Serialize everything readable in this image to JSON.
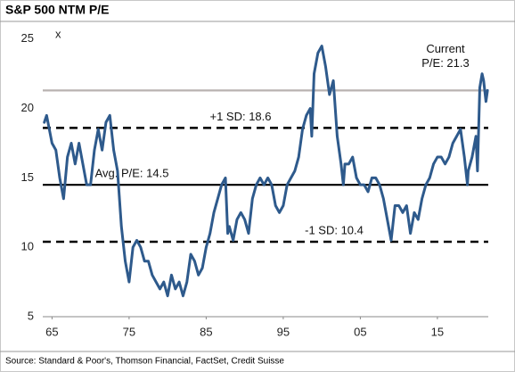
{
  "chart_data": {
    "type": "line",
    "title": "S&P 500 NTM P/E",
    "y_unit_label": "x",
    "source": "Source: Standard & Poor's, Thomson Financial, FactSet, Credit Suisse",
    "xlim": [
      1963.8,
      2021.6
    ],
    "ylim": [
      5,
      25.5
    ],
    "xticks": [
      {
        "value": 1965,
        "label": "65"
      },
      {
        "value": 1975,
        "label": "75"
      },
      {
        "value": 1985,
        "label": "85"
      },
      {
        "value": 1995,
        "label": "95"
      },
      {
        "value": 2005,
        "label": "05"
      },
      {
        "value": 2015,
        "label": "15"
      }
    ],
    "yticks": [
      5,
      10,
      15,
      20,
      25
    ],
    "reference_lines": [
      {
        "value": 21.3,
        "label": [
          "Current",
          "P/E: 21.3"
        ],
        "style": "solid",
        "color": "#b8b2b0"
      },
      {
        "value": 18.6,
        "label": [
          "+1 SD: 18.6"
        ],
        "style": "dashed",
        "color": "#000000"
      },
      {
        "value": 14.5,
        "label": [
          "Avg. P/E: 14.5"
        ],
        "style": "solid",
        "color": "#000000"
      },
      {
        "value": 10.4,
        "label": [
          "-1 SD: 10.4"
        ],
        "style": "dashed",
        "color": "#000000"
      }
    ],
    "series": [
      {
        "color": "#2e5a8c",
        "x": [
          1964,
          1964.3,
          1965,
          1965.5,
          1966,
          1966.5,
          1967,
          1967.5,
          1968,
          1968.5,
          1969,
          1969.5,
          1970,
          1970.5,
          1971,
          1971.5,
          1972,
          1972.5,
          1973,
          1973.5,
          1974,
          1974.5,
          1975,
          1975.5,
          1976,
          1976.5,
          1977,
          1977.5,
          1978,
          1978.5,
          1979,
          1979.5,
          1980,
          1980.5,
          1981,
          1981.5,
          1982,
          1982.5,
          1983,
          1983.5,
          1984,
          1984.5,
          1985,
          1985.5,
          1986,
          1986.5,
          1987,
          1987.5,
          1987.8,
          1988,
          1988.5,
          1989,
          1989.5,
          1990,
          1990.5,
          1991,
          1991.5,
          1992,
          1992.5,
          1993,
          1993.5,
          1994,
          1994.5,
          1995,
          1995.5,
          1996,
          1996.5,
          1997,
          1997.5,
          1998,
          1998.5,
          1998.7,
          1999,
          1999.5,
          2000,
          2000.5,
          2001,
          2001.5,
          2002,
          2002.5,
          2002.8,
          2003,
          2003.5,
          2004,
          2004.5,
          2005,
          2005.5,
          2006,
          2006.5,
          2007,
          2007.5,
          2008,
          2008.5,
          2009,
          2009.5,
          2010,
          2010.5,
          2011,
          2011.5,
          2012,
          2012.5,
          2013,
          2013.5,
          2014,
          2014.5,
          2015,
          2015.5,
          2016,
          2016.5,
          2017,
          2017.5,
          2018,
          2018.5,
          2018.9,
          2019,
          2019.5,
          2020,
          2020.2,
          2020.5,
          2020.8,
          2021,
          2021.3,
          2021.5
        ],
        "values": [
          19,
          19.5,
          17.5,
          17,
          15,
          13.5,
          16.5,
          17.5,
          16,
          17.5,
          16,
          14.5,
          14.5,
          17,
          18.5,
          17,
          19,
          19.5,
          17,
          15.5,
          11.5,
          9,
          7.5,
          10,
          10.5,
          10,
          9,
          9,
          8,
          7.5,
          7,
          7.5,
          6.5,
          8,
          7,
          7.5,
          6.5,
          7.5,
          9.5,
          9,
          8,
          8.5,
          10,
          11,
          12.5,
          13.5,
          14.5,
          15,
          11,
          11.5,
          10.5,
          12,
          12.5,
          12,
          11,
          13.5,
          14.5,
          15,
          14.5,
          15,
          14.5,
          13,
          12.5,
          13,
          14.5,
          15,
          15.5,
          16.5,
          18.5,
          19.5,
          20,
          18,
          22.5,
          24,
          24.5,
          23,
          21,
          22,
          18,
          16,
          14.5,
          16,
          16,
          16.5,
          15,
          14.5,
          14.5,
          14,
          15,
          15,
          14.5,
          13.5,
          12,
          10.5,
          13,
          13,
          12.5,
          13,
          11,
          12.5,
          12,
          13.5,
          14.5,
          15,
          16,
          16.5,
          16.5,
          16,
          16.5,
          17.5,
          18,
          18.5,
          16.5,
          14.5,
          15.5,
          16.5,
          18,
          15.5,
          21.5,
          22.5,
          22,
          20.5,
          21.3
        ]
      }
    ]
  }
}
